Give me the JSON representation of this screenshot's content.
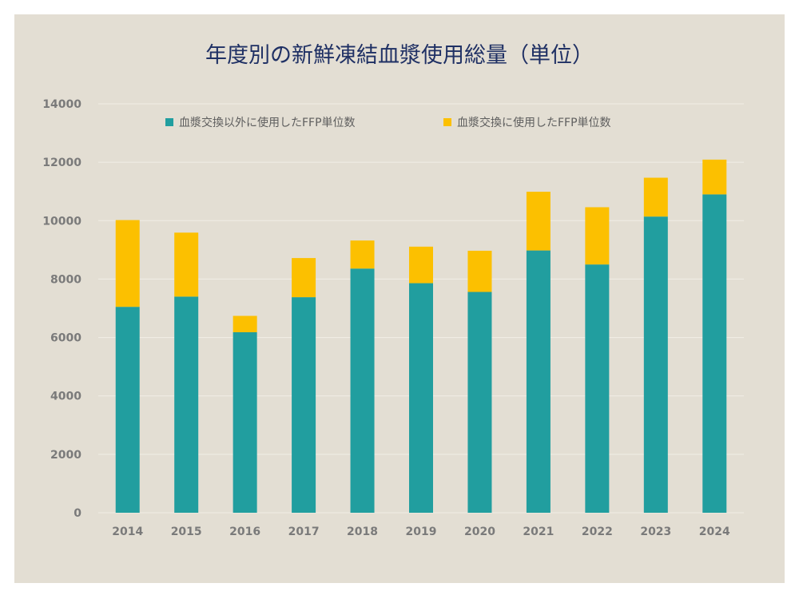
{
  "colors": {
    "series1": "#219e9f",
    "series2": "#fcc000",
    "background": "#e3ded3",
    "title": "#1f3064"
  },
  "chart_data": {
    "type": "bar",
    "stacked": true,
    "title": "年度別の新鮮凍結血漿使用総量（単位）",
    "xlabel": "",
    "ylabel": "",
    "categories": [
      "2014",
      "2015",
      "2016",
      "2017",
      "2018",
      "2019",
      "2020",
      "2021",
      "2022",
      "2023",
      "2024"
    ],
    "series": [
      {
        "name": "血漿交換以外に使用したFFP単位数",
        "values": [
          7050,
          7400,
          6180,
          7380,
          8360,
          7860,
          7560,
          8980,
          8500,
          10140,
          10900
        ]
      },
      {
        "name": "血漿交換に使用したFFP単位数",
        "values": [
          2970,
          2190,
          560,
          1340,
          960,
          1250,
          1410,
          2010,
          1960,
          1330,
          1190
        ]
      }
    ],
    "ylim": [
      0,
      14000
    ],
    "yticks": [
      0,
      2000,
      4000,
      6000,
      8000,
      10000,
      12000,
      14000
    ],
    "grid": true,
    "legend_position": "top"
  }
}
